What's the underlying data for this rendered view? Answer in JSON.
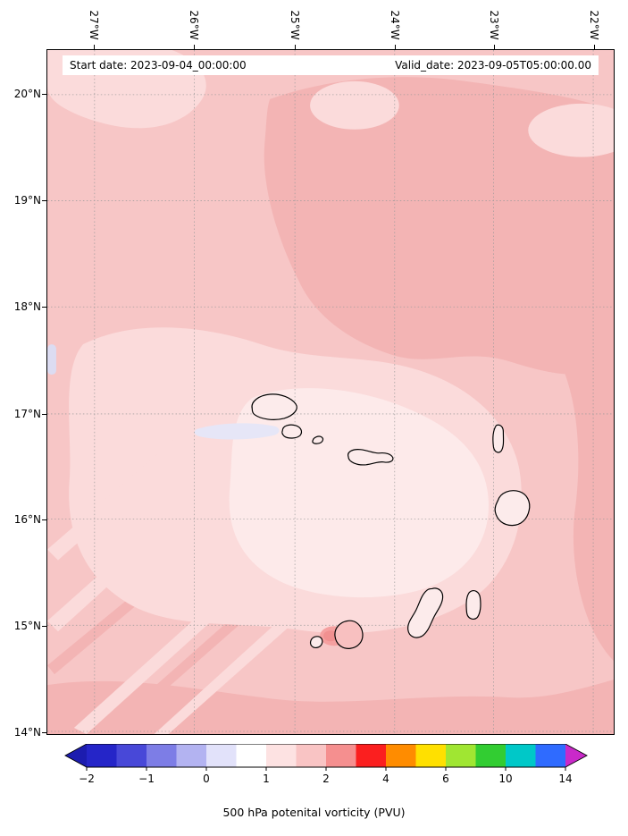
{
  "figure": {
    "annotation": {
      "start_date": "Start date: 2023-09-04_00:00:00",
      "valid_date": "Valid_date: 2023-09-05T05:00:00.00"
    },
    "axes": {
      "lon_labels": [
        "27°W",
        "26°W",
        "25°W",
        "24°W",
        "23°W",
        "22°W"
      ],
      "lat_labels": [
        "20°N",
        "19°N",
        "18°N",
        "17°N",
        "16°N",
        "15°N",
        "14°N"
      ]
    },
    "colorbar": {
      "label": "500 hPa potenital vorticity (PVU)",
      "tick_labels": [
        "−2",
        "−1",
        "0",
        "1",
        "2",
        "4",
        "6",
        "10",
        "14"
      ],
      "levels": [
        -2,
        -1.5,
        -1,
        -0.5,
        0,
        0.5,
        1,
        1.5,
        2,
        3,
        4,
        5,
        6,
        8,
        10,
        12,
        14
      ],
      "segment_colors": [
        "#2525c8",
        "#4848d8",
        "#7d7de6",
        "#b3b3f1",
        "#e2e2fa",
        "#ffffff",
        "#fde2e2",
        "#f9c4c4",
        "#f58f8f",
        "#fb1f1f",
        "#ff8c00",
        "#ffe000",
        "#a0e632",
        "#32cd32",
        "#00c8c8",
        "#2f6bff"
      ],
      "under_color": "#1c1caf",
      "over_color": "#c929c9"
    }
  },
  "chart_data": {
    "type": "heatmap",
    "subtype": "filled-contour geographic map",
    "title": "",
    "annotations": [
      "Start date: 2023-09-04_00:00:00",
      "Valid_date: 2023-09-05T05:00:00.00"
    ],
    "colorbar_label": "500 hPa potenital vorticity (PVU)",
    "colorbar_ticks": [
      -2,
      -1,
      0,
      1,
      2,
      4,
      6,
      10,
      14
    ],
    "contour_levels": [
      -2,
      -1.5,
      -1,
      -0.5,
      0,
      0.5,
      1,
      1.5,
      2,
      3,
      4,
      5,
      6,
      8,
      10,
      12,
      14
    ],
    "colorbar_extend": "both",
    "x_tick_labels": [
      "27°W",
      "26°W",
      "25°W",
      "24°W",
      "23°W",
      "22°W"
    ],
    "y_tick_labels": [
      "20°N",
      "19°N",
      "18°N",
      "17°N",
      "16°N",
      "15°N",
      "14°N"
    ],
    "extent": {
      "lon_deg_west": [
        27.5,
        21.8
      ],
      "lat_deg_north": [
        14.0,
        20.4
      ]
    },
    "grid": true,
    "legend_position": "horizontal colorbar below map",
    "field_units": "PVU",
    "map_overlay": "black island coastline outlines (Cape Verde archipelago)",
    "approx_field_values_PVU": {
      "note": "estimated from color shading at integer grid intersections; rows = lat 20N to 14N, cols = lon 27W to 22W; field is mostly light pink 0.5-1.5 PVU with paler ~0.5 core around the islands and slightly higher ~1.5 patches NE and along bottom/right edges",
      "lats": [
        20,
        19,
        18,
        17,
        16,
        15,
        14
      ],
      "lons": [
        -27,
        -26,
        -25,
        -24,
        -23,
        -22
      ],
      "values": [
        [
          0.8,
          0.8,
          1.0,
          1.0,
          1.2,
          1.0
        ],
        [
          0.8,
          1.0,
          0.8,
          1.2,
          1.4,
          1.2
        ],
        [
          0.8,
          1.0,
          1.0,
          1.2,
          1.4,
          1.0
        ],
        [
          0.8,
          0.8,
          1.0,
          1.0,
          1.0,
          1.2
        ],
        [
          0.8,
          0.6,
          0.6,
          0.8,
          1.0,
          1.2
        ],
        [
          0.8,
          0.8,
          0.6,
          0.6,
          1.0,
          1.0
        ],
        [
          1.0,
          0.8,
          0.8,
          0.8,
          1.0,
          1.2
        ]
      ]
    }
  }
}
